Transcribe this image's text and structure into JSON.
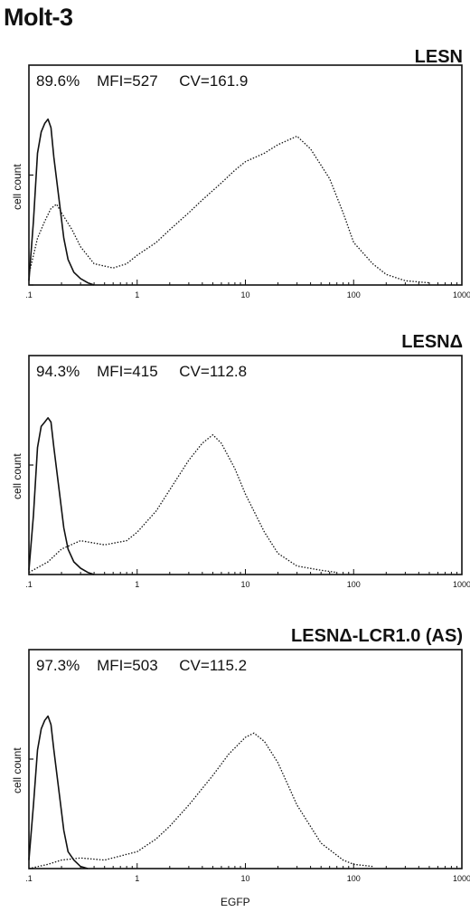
{
  "figure_title": "Molt-3",
  "chart_data": [
    {
      "type": "line",
      "title": "LESN",
      "stats_text": "89.6%    MFI=527     CV=161.9",
      "ylabel": "cell count",
      "xlabel": "",
      "xscale": "log",
      "xlim": [
        0.1,
        1000
      ],
      "xticks": [
        ".1",
        "1",
        "10",
        "100",
        "1000"
      ],
      "grid": false,
      "series": [
        {
          "style": "solid",
          "x": [
            0.1,
            0.11,
            0.12,
            0.13,
            0.14,
            0.15,
            0.16,
            0.17,
            0.19,
            0.21,
            0.23,
            0.26,
            0.3,
            0.35,
            0.4
          ],
          "y": [
            0.02,
            0.3,
            0.62,
            0.72,
            0.76,
            0.78,
            0.74,
            0.6,
            0.4,
            0.22,
            0.12,
            0.06,
            0.03,
            0.01,
            0.0
          ]
        },
        {
          "style": "dotted",
          "x": [
            0.1,
            0.12,
            0.14,
            0.16,
            0.18,
            0.2,
            0.25,
            0.3,
            0.4,
            0.6,
            0.8,
            1,
            1.5,
            2,
            3,
            4,
            6,
            8,
            10,
            15,
            20,
            30,
            40,
            60,
            80,
            100,
            150,
            200,
            300,
            500
          ],
          "y": [
            0.05,
            0.22,
            0.3,
            0.36,
            0.38,
            0.34,
            0.26,
            0.18,
            0.1,
            0.08,
            0.1,
            0.14,
            0.2,
            0.26,
            0.34,
            0.4,
            0.48,
            0.54,
            0.58,
            0.62,
            0.66,
            0.7,
            0.64,
            0.5,
            0.34,
            0.2,
            0.1,
            0.05,
            0.02,
            0.01
          ]
        }
      ]
    },
    {
      "type": "line",
      "title": "LESNΔ",
      "stats_text": "94.3%    MFI=415     CV=112.8",
      "ylabel": "cell count",
      "xlabel": "",
      "xscale": "log",
      "xlim": [
        0.1,
        1000
      ],
      "xticks": [
        ".1",
        "1",
        "10",
        "100",
        "1000"
      ],
      "grid": false,
      "series": [
        {
          "style": "solid",
          "x": [
            0.1,
            0.11,
            0.12,
            0.13,
            0.14,
            0.15,
            0.16,
            0.17,
            0.19,
            0.21,
            0.23,
            0.26,
            0.3,
            0.35,
            0.4
          ],
          "y": [
            0.02,
            0.28,
            0.6,
            0.7,
            0.72,
            0.74,
            0.72,
            0.6,
            0.4,
            0.22,
            0.12,
            0.06,
            0.03,
            0.01,
            0.0
          ]
        },
        {
          "style": "dotted",
          "x": [
            0.1,
            0.15,
            0.2,
            0.3,
            0.5,
            0.8,
            1,
            1.5,
            2,
            3,
            4,
            5,
            6,
            8,
            10,
            15,
            20,
            30,
            50,
            70
          ],
          "y": [
            0.01,
            0.06,
            0.12,
            0.16,
            0.14,
            0.16,
            0.2,
            0.3,
            0.4,
            0.54,
            0.62,
            0.66,
            0.62,
            0.5,
            0.38,
            0.2,
            0.1,
            0.04,
            0.02,
            0.01
          ]
        }
      ]
    },
    {
      "type": "line",
      "title": "LESNΔ-LCR1.0 (AS)",
      "stats_text": "97.3%    MFI=503     CV=115.2",
      "ylabel": "cell count",
      "xlabel": "EGFP",
      "xscale": "log",
      "xlim": [
        0.1,
        1000
      ],
      "xticks": [
        ".1",
        "1",
        "10",
        "100",
        "1000"
      ],
      "grid": false,
      "series": [
        {
          "style": "solid",
          "x": [
            0.1,
            0.11,
            0.12,
            0.13,
            0.14,
            0.15,
            0.16,
            0.17,
            0.19,
            0.21,
            0.23,
            0.26,
            0.3,
            0.35
          ],
          "y": [
            0.04,
            0.3,
            0.56,
            0.66,
            0.7,
            0.72,
            0.68,
            0.56,
            0.36,
            0.18,
            0.08,
            0.04,
            0.01,
            0.0
          ]
        },
        {
          "style": "dotted",
          "x": [
            0.1,
            0.15,
            0.2,
            0.3,
            0.5,
            1,
            1.5,
            2,
            3,
            5,
            7,
            10,
            12,
            15,
            20,
            30,
            50,
            80,
            100,
            150
          ],
          "y": [
            0.0,
            0.02,
            0.04,
            0.05,
            0.04,
            0.08,
            0.14,
            0.2,
            0.3,
            0.44,
            0.54,
            0.62,
            0.64,
            0.6,
            0.5,
            0.3,
            0.12,
            0.04,
            0.02,
            0.01
          ]
        }
      ]
    }
  ]
}
